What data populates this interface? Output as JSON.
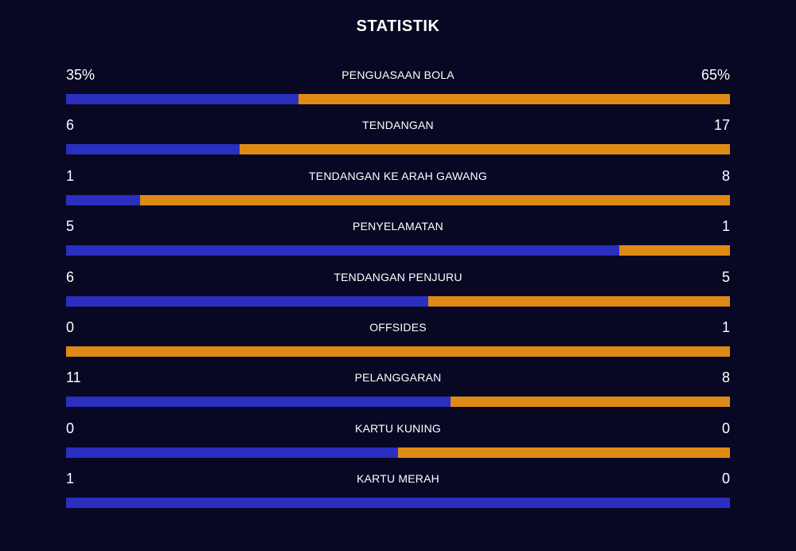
{
  "header": {
    "title": "STATISTIK"
  },
  "colors": {
    "background": "#080824",
    "home": "#2a2fbf",
    "away": "#e08a16",
    "text": "#ffffff"
  },
  "stats": [
    {
      "label": "PENGUASAAN BOLA",
      "home": "35%",
      "away": "65%",
      "home_share": 0.35
    },
    {
      "label": "TENDANGAN",
      "home": "6",
      "away": "17",
      "home_share": 0.261
    },
    {
      "label": "TENDANGAN KE ARAH GAWANG",
      "home": "1",
      "away": "8",
      "home_share": 0.111
    },
    {
      "label": "PENYELAMATAN",
      "home": "5",
      "away": "1",
      "home_share": 0.833
    },
    {
      "label": "TENDANGAN PENJURU",
      "home": "6",
      "away": "5",
      "home_share": 0.545
    },
    {
      "label": "OFFSIDES",
      "home": "0",
      "away": "1",
      "home_share": 0
    },
    {
      "label": "PELANGGARAN",
      "home": "11",
      "away": "8",
      "home_share": 0.579
    },
    {
      "label": "KARTU KUNING",
      "home": "0",
      "away": "0",
      "home_share": 0.5
    },
    {
      "label": "KARTU MERAH",
      "home": "1",
      "away": "0",
      "home_share": 1
    }
  ]
}
